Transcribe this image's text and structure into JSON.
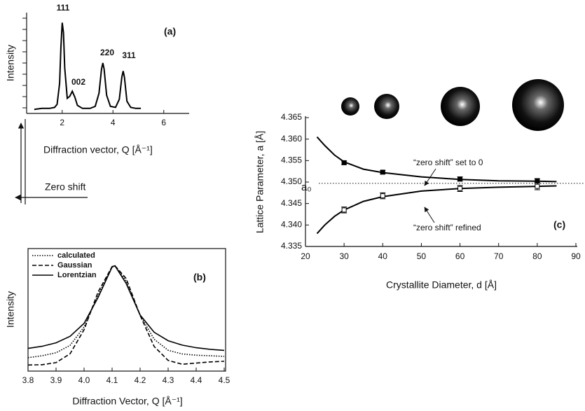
{
  "chart_data": [
    {
      "type": "line",
      "panel_label": "(a)",
      "x_label": "Diffraction vector, Q   [Å⁻¹]",
      "y_label": "Intensity",
      "x": [
        0.9,
        1.2,
        1.5,
        1.7,
        1.8,
        1.9,
        1.95,
        2.0,
        2.05,
        2.1,
        2.2,
        2.3,
        2.4,
        2.5,
        2.6,
        2.8,
        3.1,
        3.3,
        3.45,
        3.55,
        3.6,
        3.65,
        3.75,
        3.9,
        4.1,
        4.25,
        4.35,
        4.4,
        4.45,
        4.55,
        4.7,
        4.9,
        5.1
      ],
      "values": [
        4,
        5,
        5,
        6,
        9,
        30,
        65,
        90,
        80,
        45,
        15,
        17,
        22,
        16,
        8,
        5,
        5,
        7,
        20,
        44,
        50,
        44,
        18,
        7,
        6,
        14,
        36,
        42,
        36,
        12,
        6,
        5,
        5
      ],
      "color": "#000000",
      "xlim": [
        0.6,
        7
      ],
      "xticks": [
        2,
        4,
        6
      ],
      "ylim": [
        0,
        100
      ],
      "peak_labels": [
        "111",
        "002",
        "220",
        "311"
      ],
      "zero_shift_label": "Zero shift"
    },
    {
      "type": "line",
      "panel_label": "(b)",
      "x_label": "Diffraction Vector, Q  [Å⁻¹]",
      "y_label": "Intensity",
      "x": [
        3.8,
        3.85,
        3.9,
        3.95,
        4.0,
        4.05,
        4.1,
        4.11,
        4.15,
        4.2,
        4.25,
        4.3,
        4.35,
        4.4,
        4.45,
        4.5
      ],
      "series": [
        {
          "name": "calculated",
          "color": "#000000",
          "dash": "dotted",
          "values": [
            11,
            12.5,
            15,
            21,
            36,
            62,
            85,
            86,
            73.5,
            45.6,
            26,
            17,
            14,
            13,
            12.5,
            12
          ]
        },
        {
          "name": "Gaussian",
          "color": "#000000",
          "dash": "dashed",
          "values": [
            5,
            5.2,
            6.9,
            14.1,
            33.8,
            64.5,
            85.3,
            86,
            75.6,
            45.5,
            20.1,
            8.7,
            5.6,
            6.5,
            7.5,
            8
          ]
        },
        {
          "name": "Lorentzian",
          "color": "#000000",
          "dash": "solid",
          "values": [
            18.5,
            20.2,
            23.1,
            28.4,
            38.9,
            60.1,
            84.9,
            86,
            71.6,
            45.8,
            31.7,
            24.8,
            21.2,
            19.1,
            17.8,
            16.9
          ]
        }
      ],
      "xlim": [
        3.8,
        4.5
      ],
      "xticks": [
        3.8,
        3.9,
        {
          "value": 4.0,
          "label": "4.0"
        },
        4.1,
        4.2,
        4.3,
        4.4,
        4.5
      ],
      "ylim": [
        0,
        100
      ],
      "legend": "top-left"
    },
    {
      "type": "scatter",
      "panel_label": "(c)",
      "x_label": "Crystallite Diameter, d   [Å]",
      "y_label": "Lattice Parameter, a   [Å]",
      "series": [
        {
          "marker": "filled",
          "color": "#000000",
          "x": [
            30,
            40,
            60,
            80
          ],
          "values": [
            4.3545,
            4.3523,
            4.3507,
            4.3503
          ],
          "errors": [
            0.0004,
            0.0004,
            0.0005,
            0.0005
          ]
        },
        {
          "marker": "open",
          "color": "#000000",
          "x": [
            30,
            40,
            60,
            80
          ],
          "values": [
            4.3435,
            4.3468,
            4.3485,
            4.349
          ],
          "errors": [
            0.0007,
            0.0007,
            0.0007,
            0.0008
          ]
        }
      ],
      "fits": [
        {
          "color": "#000000",
          "x": [
            23,
            25,
            27.5,
            30,
            35,
            40,
            50,
            60,
            70,
            80,
            85
          ],
          "values": [
            4.3605,
            4.3585,
            4.3563,
            4.3547,
            4.353,
            4.3522,
            4.3512,
            4.3506,
            4.3503,
            4.3502,
            4.3501
          ]
        },
        {
          "color": "#000000",
          "x": [
            23,
            25,
            27.5,
            30,
            35,
            40,
            50,
            60,
            70,
            80,
            85
          ],
          "values": [
            4.338,
            4.34,
            4.342,
            4.3435,
            4.3455,
            4.3466,
            4.3479,
            4.3485,
            4.3488,
            4.349,
            4.3491
          ]
        }
      ],
      "reference": {
        "label": "a₀",
        "value": 4.3497
      },
      "annotations": [
        "“zero shift” set to 0",
        "“zero shift” refined"
      ],
      "xlim": [
        20,
        90
      ],
      "xticks": [
        20,
        30,
        40,
        50,
        60,
        70,
        80,
        90
      ],
      "ylim": [
        4.335,
        4.365
      ],
      "yticks": [
        4.335,
        {
          "value": 4.34,
          "label": "4.340"
        },
        4.345,
        {
          "value": 4.35,
          "label": "4.350"
        },
        4.355,
        {
          "value": 4.36,
          "label": "4.360"
        },
        4.365
      ]
    }
  ]
}
